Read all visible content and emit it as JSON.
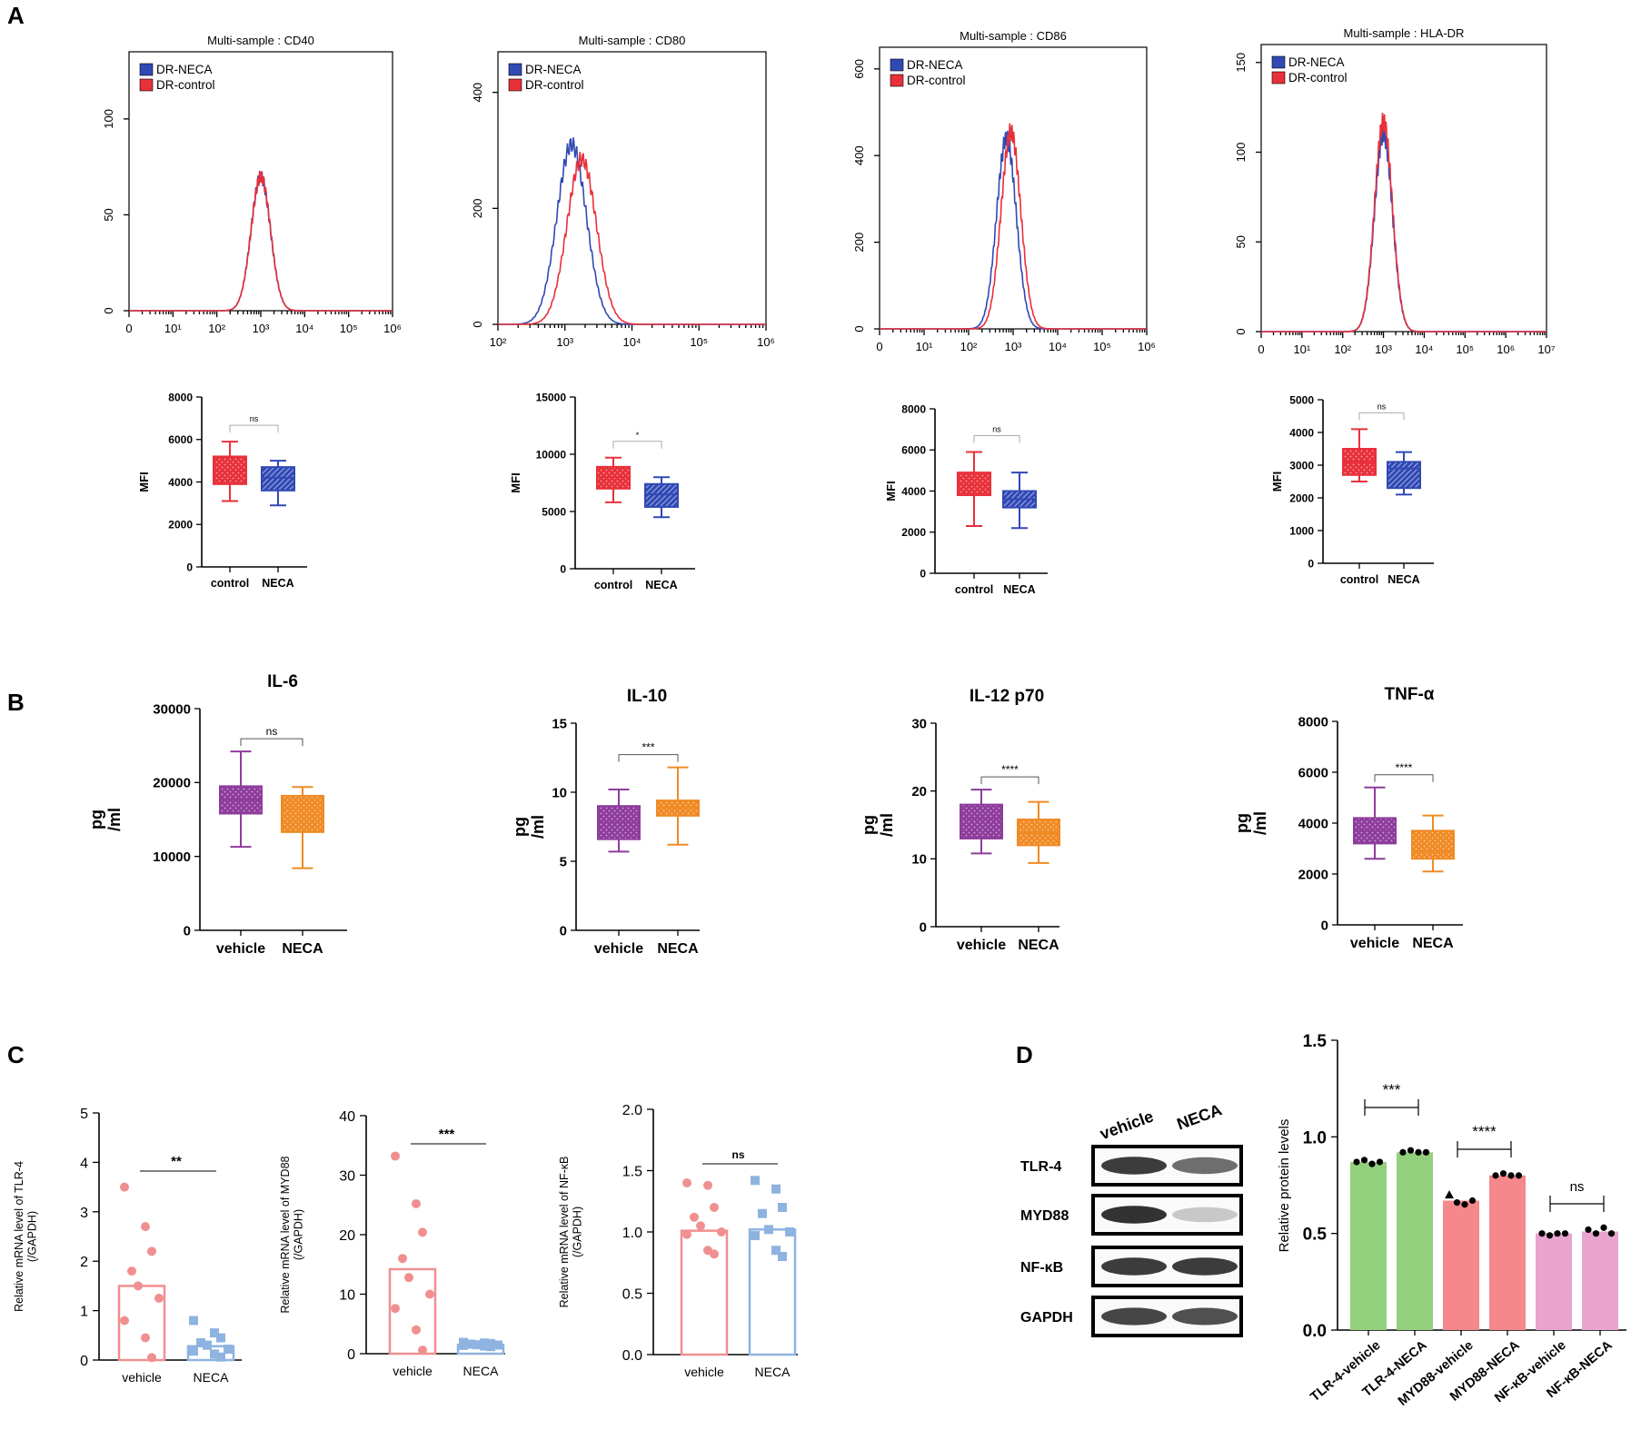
{
  "panel_letters": [
    "A",
    "B",
    "C",
    "D"
  ],
  "colors": {
    "neca_blue": "#3049b5",
    "control_red": "#e8303a",
    "vehicle_purple": "#8e3c9c",
    "neca_orange": "#f08a24",
    "vehicle_pink": "#f08f90",
    "neca_lightblue": "#8fb3e0",
    "green": "#93d07d",
    "salmon": "#f4888a",
    "mauve": "#e8a3cf"
  },
  "chart_data": [
    {
      "id": "A1",
      "type": "histogram",
      "title": "Multi-sample : CD40",
      "legend": [
        "DR-NECA",
        "DR-control"
      ],
      "legend_placement": "top-left",
      "x_scale": "log",
      "x_ticks": [
        "0",
        "10¹",
        "10²",
        "10³",
        "10⁴",
        "10⁵",
        "10⁶"
      ],
      "y_ticks": [
        "0",
        "50",
        "100"
      ],
      "ylim": [
        0,
        135
      ],
      "series": [
        {
          "name": "DR-NECA",
          "peak_decade": 3.0,
          "peak": 70
        },
        {
          "name": "DR-control",
          "peak_decade": 3.0,
          "peak": 70
        }
      ]
    },
    {
      "id": "A2",
      "type": "histogram",
      "title": "Multi-sample : CD80",
      "legend": [
        "DR-NECA",
        "DR-control"
      ],
      "legend_placement": "top-left",
      "x_scale": "log",
      "x_ticks": [
        "10²",
        "10³",
        "10⁴",
        "10⁵",
        "10⁶"
      ],
      "y_ticks": [
        "0",
        "200",
        "400"
      ],
      "ylim": [
        0,
        470
      ],
      "series": [
        {
          "name": "DR-NECA",
          "peak_decade": 3.1,
          "peak": 310
        },
        {
          "name": "DR-control",
          "peak_decade": 3.25,
          "peak": 285
        }
      ]
    },
    {
      "id": "A3",
      "type": "histogram",
      "title": "Multi-sample : CD86",
      "legend": [
        "DR-NECA",
        "DR-control"
      ],
      "legend_placement": "top-left",
      "x_scale": "log",
      "x_ticks": [
        "0",
        "10¹",
        "10²",
        "10³",
        "10⁴",
        "10⁵",
        "10⁶"
      ],
      "y_ticks": [
        "0",
        "200",
        "400",
        "600"
      ],
      "ylim": [
        0,
        650
      ],
      "series": [
        {
          "name": "DR-NECA",
          "peak_decade": 2.85,
          "peak": 440
        },
        {
          "name": "DR-control",
          "peak_decade": 2.95,
          "peak": 455
        }
      ]
    },
    {
      "id": "A4",
      "type": "histogram",
      "title": "Multi-sample : HLA-DR",
      "legend": [
        "DR-NECA",
        "DR-control"
      ],
      "legend_placement": "top-left",
      "x_scale": "log",
      "x_ticks": [
        "0",
        "10¹",
        "10²",
        "10³",
        "10⁴",
        "10⁵",
        "10⁶",
        "10⁷"
      ],
      "y_ticks": [
        "0",
        "50",
        "100",
        "150"
      ],
      "ylim": [
        0,
        160
      ],
      "series": [
        {
          "name": "DR-NECA",
          "peak_decade": 3.0,
          "peak": 110
        },
        {
          "name": "DR-control",
          "peak_decade": 3.0,
          "peak": 117
        }
      ]
    },
    {
      "id": "A5",
      "type": "box",
      "ylabel": "MFI",
      "categories": [
        "control",
        "NECA"
      ],
      "ylim": [
        0,
        8000
      ],
      "y_ticks": [
        "0",
        "2000",
        "4000",
        "6000",
        "8000"
      ],
      "significance": "ns",
      "boxes": [
        {
          "min": 3100,
          "q1": 3900,
          "median": 4500,
          "q3": 5200,
          "max": 5900
        },
        {
          "min": 2900,
          "q1": 3600,
          "median": 4200,
          "q3": 4700,
          "max": 5000
        }
      ]
    },
    {
      "id": "A6",
      "type": "box",
      "ylabel": "MFI",
      "categories": [
        "control",
        "NECA"
      ],
      "ylim": [
        0,
        15000
      ],
      "y_ticks": [
        "0",
        "5000",
        "10000",
        "15000"
      ],
      "significance": "*",
      "boxes": [
        {
          "min": 5800,
          "q1": 7000,
          "median": 8000,
          "q3": 8900,
          "max": 9700
        },
        {
          "min": 4500,
          "q1": 5400,
          "median": 6500,
          "q3": 7400,
          "max": 8000
        }
      ]
    },
    {
      "id": "A7",
      "type": "box",
      "ylabel": "MFI",
      "categories": [
        "control",
        "NECA"
      ],
      "ylim": [
        0,
        8000
      ],
      "y_ticks": [
        "0",
        "2000",
        "4000",
        "6000",
        "8000"
      ],
      "significance": "ns",
      "boxes": [
        {
          "min": 2300,
          "q1": 3800,
          "median": 4300,
          "q3": 4900,
          "max": 5900
        },
        {
          "min": 2200,
          "q1": 3200,
          "median": 3600,
          "q3": 4000,
          "max": 4900
        }
      ]
    },
    {
      "id": "A8",
      "type": "box",
      "ylabel": "MFI",
      "categories": [
        "control",
        "NECA"
      ],
      "ylim": [
        0,
        5000
      ],
      "y_ticks": [
        "0",
        "1000",
        "2000",
        "3000",
        "4000",
        "5000"
      ],
      "significance": "ns",
      "boxes": [
        {
          "min": 2500,
          "q1": 2700,
          "median": 3100,
          "q3": 3500,
          "max": 4100
        },
        {
          "min": 2100,
          "q1": 2300,
          "median": 2900,
          "q3": 3100,
          "max": 3400
        }
      ]
    },
    {
      "id": "B1",
      "type": "box",
      "title": "IL-6",
      "ylabel": "pg\n/ml",
      "categories": [
        "vehicle",
        "NECA"
      ],
      "ylim": [
        0,
        30000
      ],
      "y_ticks": [
        "0",
        "10000",
        "20000",
        "30000"
      ],
      "significance": "ns",
      "boxes": [
        {
          "min": 11300,
          "q1": 15800,
          "median": 17700,
          "q3": 19500,
          "max": 24200
        },
        {
          "min": 8400,
          "q1": 13300,
          "median": 16400,
          "q3": 18200,
          "max": 19400
        }
      ]
    },
    {
      "id": "B2",
      "type": "box",
      "title": "IL-10",
      "ylabel": "pg\n/ml",
      "categories": [
        "vehicle",
        "NECA"
      ],
      "ylim": [
        0,
        15
      ],
      "y_ticks": [
        "0",
        "5",
        "10",
        "15"
      ],
      "significance": "***",
      "boxes": [
        {
          "min": 5.7,
          "q1": 6.6,
          "median": 7.8,
          "q3": 9.0,
          "max": 10.2
        },
        {
          "min": 6.2,
          "q1": 8.3,
          "median": 8.9,
          "q3": 9.4,
          "max": 11.8
        }
      ]
    },
    {
      "id": "B3",
      "type": "box",
      "title": "IL-12 p70",
      "ylabel": "pg\n/ml",
      "categories": [
        "vehicle",
        "NECA"
      ],
      "ylim": [
        0,
        30
      ],
      "y_ticks": [
        "0",
        "10",
        "20",
        "30"
      ],
      "significance": "****",
      "boxes": [
        {
          "min": 10.8,
          "q1": 13.0,
          "median": 16.0,
          "q3": 18.0,
          "max": 20.2
        },
        {
          "min": 9.4,
          "q1": 12.0,
          "median": 13.8,
          "q3": 15.8,
          "max": 18.4
        }
      ]
    },
    {
      "id": "B4",
      "type": "box",
      "title": "TNF-α",
      "ylabel": "pg\n/ml",
      "categories": [
        "vehicle",
        "NECA"
      ],
      "ylim": [
        0,
        8000
      ],
      "y_ticks": [
        "0",
        "2000",
        "4000",
        "6000",
        "8000"
      ],
      "significance": "****",
      "boxes": [
        {
          "min": 2600,
          "q1": 3200,
          "median": 3700,
          "q3": 4200,
          "max": 5400
        },
        {
          "min": 2100,
          "q1": 2600,
          "median": 2900,
          "q3": 3700,
          "max": 4300
        }
      ]
    },
    {
      "id": "C1",
      "type": "bar_scatter",
      "ylabel": "Relative mRNA level of TLR-4\n(/GAPDH)",
      "categories": [
        "vehicle",
        "NECA"
      ],
      "ylim": [
        0,
        5
      ],
      "y_ticks": [
        "0",
        "1",
        "2",
        "3",
        "4",
        "5"
      ],
      "significance": "**",
      "values": [
        1.5,
        0.28
      ],
      "points": [
        [
          3.5,
          2.7,
          2.2,
          1.8,
          1.5,
          1.25,
          0.8,
          0.45,
          0.05
        ],
        [
          0.8,
          0.55,
          0.45,
          0.35,
          0.3,
          0.22,
          0.18,
          0.12,
          0.06
        ]
      ]
    },
    {
      "id": "C2",
      "type": "bar_scatter",
      "ylabel": "Relative mRNA level of MYD88\n(/GAPDH)",
      "categories": [
        "vehicle",
        "NECA"
      ],
      "ylim": [
        0,
        40
      ],
      "y_ticks": [
        "0",
        "10",
        "20",
        "30",
        "40"
      ],
      "significance": "***",
      "values": [
        14.2,
        1.5
      ],
      "points": [
        [
          33.2,
          25.2,
          20.4,
          16.0,
          12.8,
          10.0,
          7.6,
          4.0,
          0.6
        ],
        [
          1.9,
          1.8,
          1.7,
          1.6,
          1.5,
          1.45,
          1.4,
          1.3,
          1.2
        ]
      ]
    },
    {
      "id": "C3",
      "type": "bar_scatter",
      "ylabel": "Relative mRNA level of NF-κB\n(/GAPDH)",
      "categories": [
        "vehicle",
        "NECA"
      ],
      "ylim": [
        0,
        2
      ],
      "y_ticks": [
        "0.0",
        "0.5",
        "1.0",
        "1.5",
        "2.0"
      ],
      "significance": "ns",
      "values": [
        1.01,
        1.02
      ],
      "points": [
        [
          1.4,
          1.38,
          1.2,
          1.12,
          1.05,
          1.0,
          0.98,
          0.85,
          0.82
        ],
        [
          1.42,
          1.35,
          1.2,
          1.15,
          1.02,
          1.0,
          0.97,
          0.85,
          0.8
        ]
      ]
    },
    {
      "id": "D2",
      "type": "bar_scatter",
      "ylabel": "Relative protein levels",
      "categories": [
        "TLR-4-vehicle",
        "TLR-4-NECA",
        "MYD88-vehicle",
        "MYD88-NECA",
        "NF-κB-vehicle",
        "NF-κB-NECA"
      ],
      "ylim": [
        0,
        1.5
      ],
      "y_ticks": [
        "0.0",
        "0.5",
        "1.0",
        "1.5"
      ],
      "values": [
        0.87,
        0.92,
        0.67,
        0.8,
        0.5,
        0.51
      ],
      "points": [
        [
          0.87,
          0.88,
          0.86,
          0.87
        ],
        [
          0.92,
          0.93,
          0.92,
          0.92
        ],
        [
          0.7,
          0.66,
          0.65,
          0.67
        ],
        [
          0.8,
          0.81,
          0.8,
          0.8
        ],
        [
          0.5,
          0.49,
          0.5,
          0.5
        ],
        [
          0.52,
          0.5,
          0.53,
          0.5
        ]
      ],
      "comparisons": [
        {
          "pair": [
            0,
            1
          ],
          "label": "***"
        },
        {
          "pair": [
            2,
            3
          ],
          "label": "****"
        },
        {
          "pair": [
            4,
            5
          ],
          "label": "ns"
        }
      ]
    }
  ],
  "blot": {
    "lanes": [
      "vehicle",
      "NECA"
    ],
    "rows": [
      {
        "label": "TLR-4",
        "intensity": [
          0.85,
          0.6
        ]
      },
      {
        "label": "MYD88",
        "intensity": [
          0.9,
          0.15
        ]
      },
      {
        "label": "NF-κB",
        "intensity": [
          0.85,
          0.85
        ]
      },
      {
        "label": "GAPDH",
        "intensity": [
          0.8,
          0.75
        ]
      }
    ]
  }
}
